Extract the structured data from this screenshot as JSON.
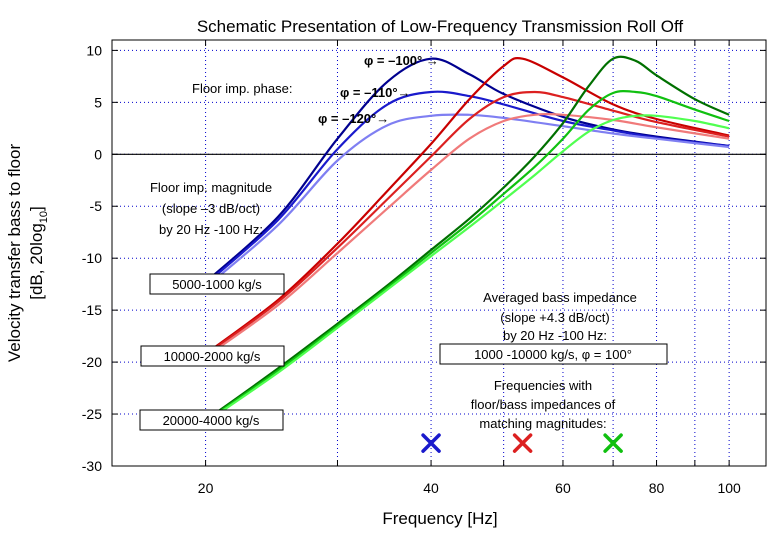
{
  "chart_data": {
    "type": "line",
    "title": "Schematic Presentation of Low-Frequency Transmission Roll Off",
    "xlabel": "Frequency [Hz]",
    "ylabel": {
      "line1": "Velocity transfer bass to floor",
      "line2_pre": "[dB, 20log",
      "line2_sub": "10",
      "line2_post": "]"
    },
    "xscale": "log",
    "xlim": [
      15,
      112
    ],
    "ylim": [
      -30,
      11
    ],
    "xticks": [
      20,
      40,
      60,
      80,
      100
    ],
    "yticks": [
      10,
      5,
      0,
      -5,
      -10,
      -15,
      -20,
      -25,
      -30
    ],
    "grid": true,
    "colors": {
      "dark_blue": "#00008f",
      "blue": "#1a1acc",
      "light_blue": "#7f7ff2",
      "dark_red": "#c80000",
      "red": "#dc2020",
      "light_red": "#f07a7a",
      "dark_green": "#007000",
      "green": "#10c010",
      "light_green": "#50ff50"
    },
    "series": [
      {
        "group": "5000-1000 kg/s",
        "phase": "φ = –100°",
        "color": "#00008f",
        "x": [
          20,
          25,
          30,
          35,
          40,
          45,
          50,
          60,
          70,
          80,
          100
        ],
        "y": [
          -12.3,
          -6.0,
          1.5,
          7.0,
          9.2,
          7.7,
          5.8,
          3.6,
          2.4,
          1.7,
          0.8
        ]
      },
      {
        "group": "5000-1000 kg/s",
        "phase": "φ = –110°",
        "color": "#1a1acc",
        "x": [
          20,
          25,
          30,
          35,
          40,
          45,
          50,
          60,
          70,
          80,
          100
        ],
        "y": [
          -12.5,
          -6.3,
          0.5,
          4.8,
          6.0,
          5.6,
          4.8,
          3.2,
          2.3,
          1.6,
          0.8
        ]
      },
      {
        "group": "5000-1000 kg/s",
        "phase": "φ = –120°",
        "color": "#7f7ff2",
        "x": [
          20,
          25,
          30,
          35,
          40,
          45,
          50,
          60,
          70,
          80,
          100
        ],
        "y": [
          -12.8,
          -6.8,
          -0.6,
          2.8,
          3.7,
          3.8,
          3.5,
          2.7,
          2.0,
          1.5,
          0.7
        ]
      },
      {
        "group": "10000-2000 kg/s",
        "phase": "φ = –100°",
        "color": "#c80000",
        "x": [
          20,
          25,
          30,
          35,
          40,
          45,
          50,
          53,
          60,
          70,
          80,
          100
        ],
        "y": [
          -19.2,
          -14.0,
          -8.6,
          -3.5,
          1.0,
          5.3,
          8.5,
          9.2,
          7.4,
          4.8,
          3.4,
          1.8
        ]
      },
      {
        "group": "10000-2000 kg/s",
        "phase": "φ = –110°",
        "color": "#dc2020",
        "x": [
          20,
          25,
          30,
          35,
          40,
          45,
          50,
          55,
          60,
          70,
          80,
          100
        ],
        "y": [
          -19.3,
          -14.2,
          -9.0,
          -4.3,
          -0.2,
          3.4,
          5.5,
          6.0,
          5.5,
          4.2,
          3.1,
          1.7
        ]
      },
      {
        "group": "10000-2000 kg/s",
        "phase": "φ = –120°",
        "color": "#f07a7a",
        "x": [
          20,
          25,
          30,
          35,
          40,
          45,
          50,
          55,
          60,
          70,
          80,
          100
        ],
        "y": [
          -19.5,
          -14.5,
          -9.5,
          -5.2,
          -1.5,
          1.5,
          3.2,
          3.8,
          3.8,
          3.3,
          2.6,
          1.5
        ]
      },
      {
        "group": "20000-4000 kg/s",
        "phase": "φ = –100°",
        "color": "#007000",
        "x": [
          20,
          25,
          30,
          35,
          40,
          45,
          50,
          55,
          60,
          65,
          70,
          75,
          80,
          90,
          100
        ],
        "y": [
          -25.6,
          -20.6,
          -16.3,
          -12.6,
          -9.2,
          -6.2,
          -3.2,
          -0.2,
          3.0,
          6.6,
          9.2,
          9.0,
          7.6,
          5.3,
          3.8
        ]
      },
      {
        "group": "20000-4000 kg/s",
        "phase": "φ = –110°",
        "color": "#10c010",
        "x": [
          20,
          25,
          30,
          35,
          40,
          45,
          50,
          55,
          60,
          65,
          70,
          75,
          80,
          90,
          100
        ],
        "y": [
          -25.7,
          -20.8,
          -16.5,
          -12.8,
          -9.5,
          -6.6,
          -3.8,
          -1.2,
          1.5,
          4.3,
          5.9,
          6.0,
          5.6,
          4.3,
          3.2
        ]
      },
      {
        "group": "20000-4000 kg/s",
        "phase": "φ = –120°",
        "color": "#50ff50",
        "x": [
          20,
          25,
          30,
          35,
          40,
          45,
          50,
          55,
          60,
          65,
          70,
          75,
          80,
          90,
          100
        ],
        "y": [
          -25.8,
          -21.0,
          -16.7,
          -13.0,
          -9.8,
          -7.0,
          -4.4,
          -2.0,
          0.3,
          2.2,
          3.3,
          3.7,
          3.7,
          3.2,
          2.5
        ]
      }
    ],
    "markers": [
      {
        "label": "×",
        "x": 40,
        "y": -27.8,
        "color": "#1a1acc"
      },
      {
        "label": "×",
        "x": 53,
        "y": -27.8,
        "color": "#dc2020"
      },
      {
        "label": "×",
        "x": 70,
        "y": -27.8,
        "color": "#10c010"
      }
    ],
    "annotations": {
      "phase_title": "Floor imp. phase:",
      "phase_100": "φ = –100° →",
      "phase_110": "φ = –110°→",
      "phase_120": "φ = –120°→",
      "mag_line1": "Floor imp. magnitude",
      "mag_line2": "(slope –3 dB/oct)",
      "mag_line3": "by 20 Hz -100 Hz:",
      "box_1": "5000-1000 kg/s",
      "box_2": "10000-2000 kg/s",
      "box_3": "20000-4000 kg/s",
      "bass_line1": "Averaged bass impedance",
      "bass_line2": "(slope +4.3 dB/oct)",
      "bass_line3": "by 20 Hz -100 Hz:",
      "bass_box": "1000 -10000 kg/s, φ = 100°",
      "freq_line1": "Frequencies with",
      "freq_line2": "floor/bass impedances of",
      "freq_line3": "matching magnitudes:"
    }
  }
}
